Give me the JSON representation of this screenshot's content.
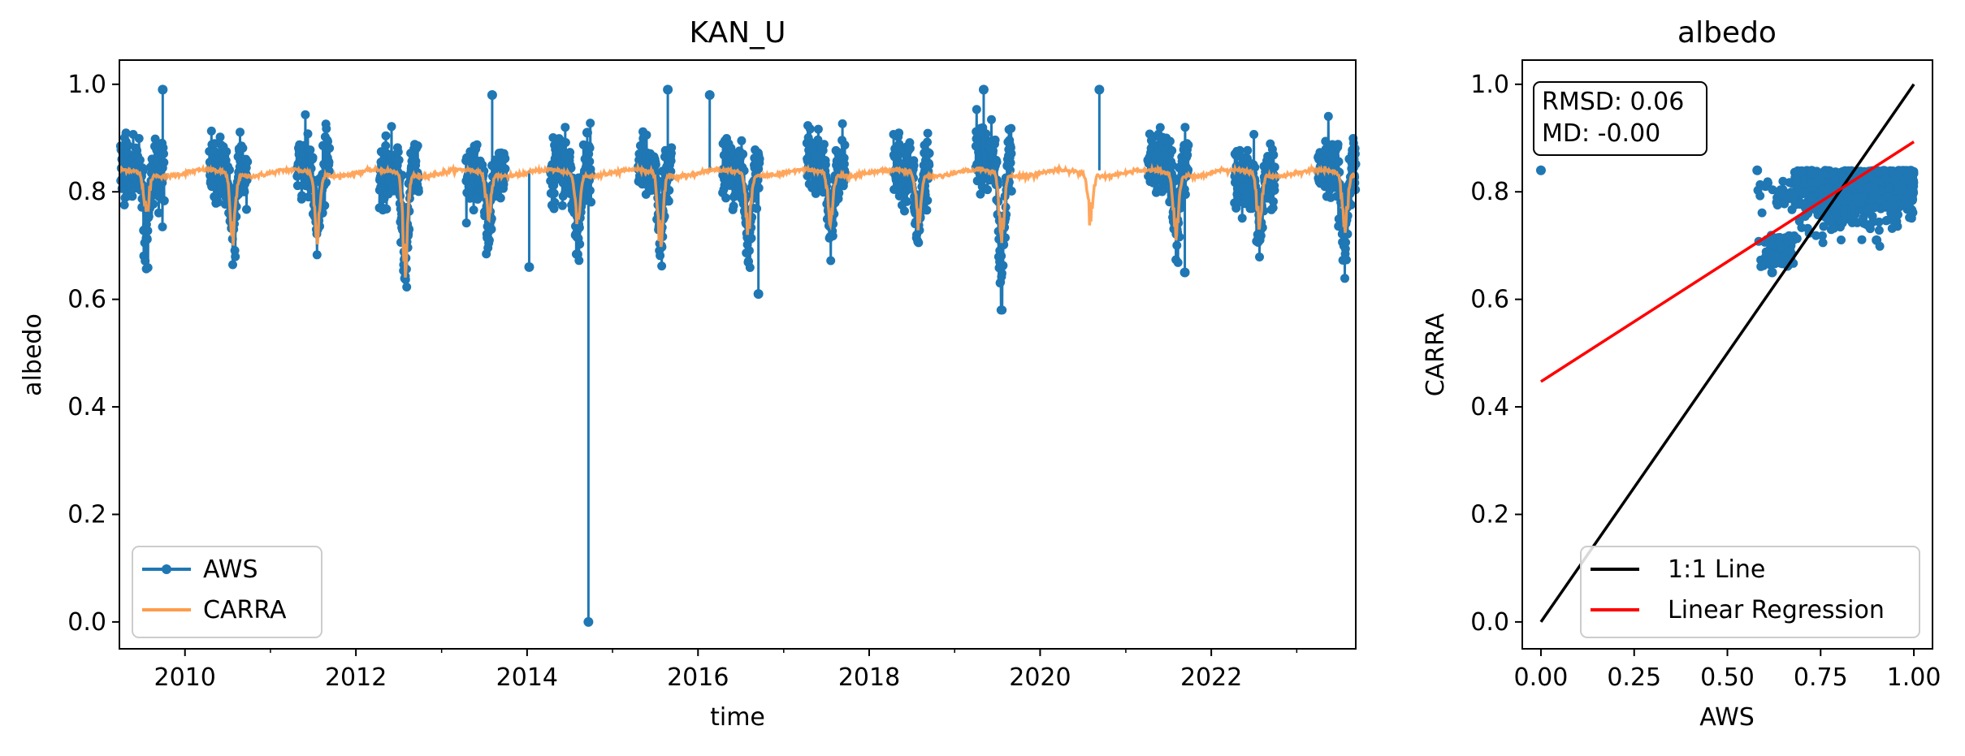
{
  "chart_data": [
    {
      "type": "line",
      "title": "KAN_U",
      "xlabel": "time",
      "ylabel": "albedo",
      "xlim": [
        "2009-03-27",
        "2023-09-10"
      ],
      "ylim": [
        -0.05,
        1.045
      ],
      "xticks_major": [
        "2010",
        "2012",
        "2014",
        "2016",
        "2018",
        "2020",
        "2022"
      ],
      "xticks_minor_years": [
        2009,
        2011,
        2013,
        2015,
        2017,
        2019,
        2021,
        2023
      ],
      "yticks": [
        "0.0",
        "0.2",
        "0.4",
        "0.6",
        "0.8",
        "1.0"
      ],
      "grid": false,
      "legend": {
        "position": "lower-left",
        "entries": [
          "AWS",
          "CARRA"
        ]
      },
      "series": [
        {
          "name": "AWS",
          "color": "#1f77b4",
          "marker": "circle",
          "seasons": [
            {
              "year": 2009,
              "start": "2009-04-01",
              "end": "2009-10-05",
              "base": 0.84,
              "dip_day": 200,
              "dip_min": 0.69
            },
            {
              "year": 2010,
              "start": "2010-04-15",
              "end": "2010-09-25",
              "base": 0.84,
              "dip_day": 205,
              "dip_min": 0.7
            },
            {
              "year": 2011,
              "start": "2011-04-25",
              "end": "2011-09-10",
              "base": 0.85,
              "dip_day": 200,
              "dip_min": 0.72
            },
            {
              "year": 2012,
              "start": "2012-04-10",
              "end": "2012-09-25",
              "base": 0.84,
              "dip_day": 210,
              "dip_min": 0.6
            },
            {
              "year": 2013,
              "start": "2013-04-15",
              "end": "2013-09-30",
              "base": 0.83,
              "dip_day": 200,
              "dip_min": 0.72
            },
            {
              "year": 2014,
              "start": "2014-04-10",
              "end": "2014-10-01",
              "base": 0.84,
              "dip_day": 215,
              "dip_min": 0.7
            },
            {
              "year": 2015,
              "start": "2015-04-20",
              "end": "2015-09-10",
              "base": 0.85,
              "dip_day": 205,
              "dip_min": 0.69
            },
            {
              "year": 2016,
              "start": "2016-04-15",
              "end": "2016-09-20",
              "base": 0.84,
              "dip_day": 215,
              "dip_min": 0.68
            },
            {
              "year": 2017,
              "start": "2017-04-10",
              "end": "2017-09-20",
              "base": 0.85,
              "dip_day": 200,
              "dip_min": 0.71
            },
            {
              "year": 2018,
              "start": "2018-04-15",
              "end": "2018-09-15",
              "base": 0.84,
              "dip_day": 210,
              "dip_min": 0.71
            },
            {
              "year": 2019,
              "start": "2019-04-01",
              "end": "2019-09-01",
              "base": 0.87,
              "dip_day": 200,
              "dip_min": 0.59
            },
            {
              "year": 2021,
              "start": "2021-04-05",
              "end": "2021-09-25",
              "base": 0.85,
              "dip_day": 215,
              "dip_min": 0.7
            },
            {
              "year": 2022,
              "start": "2022-04-10",
              "end": "2022-09-30",
              "base": 0.83,
              "dip_day": 205,
              "dip_min": 0.71
            },
            {
              "year": 2023,
              "start": "2023-04-01",
              "end": "2023-09-10",
              "base": 0.84,
              "dip_day": 205,
              "dip_min": 0.68
            }
          ],
          "outliers": [
            {
              "date": "2014-09-20",
              "value": 0.0
            },
            {
              "date": "2014-09-15",
              "value": 0.91
            },
            {
              "date": "2009-09-28",
              "value": 0.99
            },
            {
              "date": "2015-08-25",
              "value": 0.99
            },
            {
              "date": "2016-02-20",
              "value": 0.98
            },
            {
              "date": "2016-09-15",
              "value": 0.61
            },
            {
              "date": "2019-05-05",
              "value": 0.99
            },
            {
              "date": "2020-09-10",
              "value": 0.99
            },
            {
              "date": "2021-09-10",
              "value": 0.65
            },
            {
              "date": "2013-08-05",
              "value": 0.98
            },
            {
              "date": "2014-01-10",
              "value": 0.66
            }
          ]
        },
        {
          "name": "CARRA",
          "color": "#ff9c4a",
          "baseline": 0.835,
          "seasonal_dips": [
            {
              "year": 2009,
              "day": 200,
              "min": 0.74
            },
            {
              "year": 2010,
              "day": 205,
              "min": 0.68
            },
            {
              "year": 2011,
              "day": 200,
              "min": 0.7
            },
            {
              "year": 2012,
              "day": 210,
              "min": 0.64
            },
            {
              "year": 2013,
              "day": 200,
              "min": 0.73
            },
            {
              "year": 2014,
              "day": 215,
              "min": 0.73
            },
            {
              "year": 2015,
              "day": 205,
              "min": 0.68
            },
            {
              "year": 2016,
              "day": 215,
              "min": 0.71
            },
            {
              "year": 2017,
              "day": 200,
              "min": 0.72
            },
            {
              "year": 2018,
              "day": 210,
              "min": 0.73
            },
            {
              "year": 2019,
              "day": 200,
              "min": 0.69
            },
            {
              "year": 2020,
              "day": 215,
              "min": 0.73
            },
            {
              "year": 2021,
              "day": 215,
              "min": 0.7
            },
            {
              "year": 2022,
              "day": 205,
              "min": 0.72
            },
            {
              "year": 2023,
              "day": 205,
              "min": 0.7
            }
          ]
        }
      ]
    },
    {
      "type": "scatter",
      "title": "albedo",
      "xlabel": "AWS",
      "ylabel": "CARRA",
      "xlim": [
        -0.05,
        1.05
      ],
      "ylim": [
        -0.05,
        1.045
      ],
      "xticks": [
        "0.00",
        "0.25",
        "0.50",
        "0.75",
        "1.00"
      ],
      "yticks": [
        "0.0",
        "0.2",
        "0.4",
        "0.6",
        "0.8",
        "1.0"
      ],
      "grid": false,
      "stats": [
        "RMSD: 0.06",
        "MD: -0.00"
      ],
      "legend": {
        "position": "lower-right",
        "entries": [
          "1:1 Line",
          "Linear Regression"
        ]
      },
      "points": {
        "color": "#1f77b4",
        "cloud": {
          "x_min": 0.58,
          "x_max": 1.0,
          "y_min": 0.65,
          "y_max": 0.85
        },
        "extra": [
          [
            0.0,
            0.84
          ],
          [
            0.62,
            0.65
          ],
          [
            0.9,
            0.71
          ],
          [
            0.58,
            0.84
          ]
        ]
      },
      "lines": [
        {
          "name": "1:1 Line",
          "color": "#000000",
          "x": [
            0,
            1
          ],
          "y": [
            0,
            1
          ]
        },
        {
          "name": "Linear Regression",
          "color": "#ff0000",
          "x": [
            0,
            1
          ],
          "y": [
            0.447,
            0.893
          ]
        }
      ]
    }
  ]
}
